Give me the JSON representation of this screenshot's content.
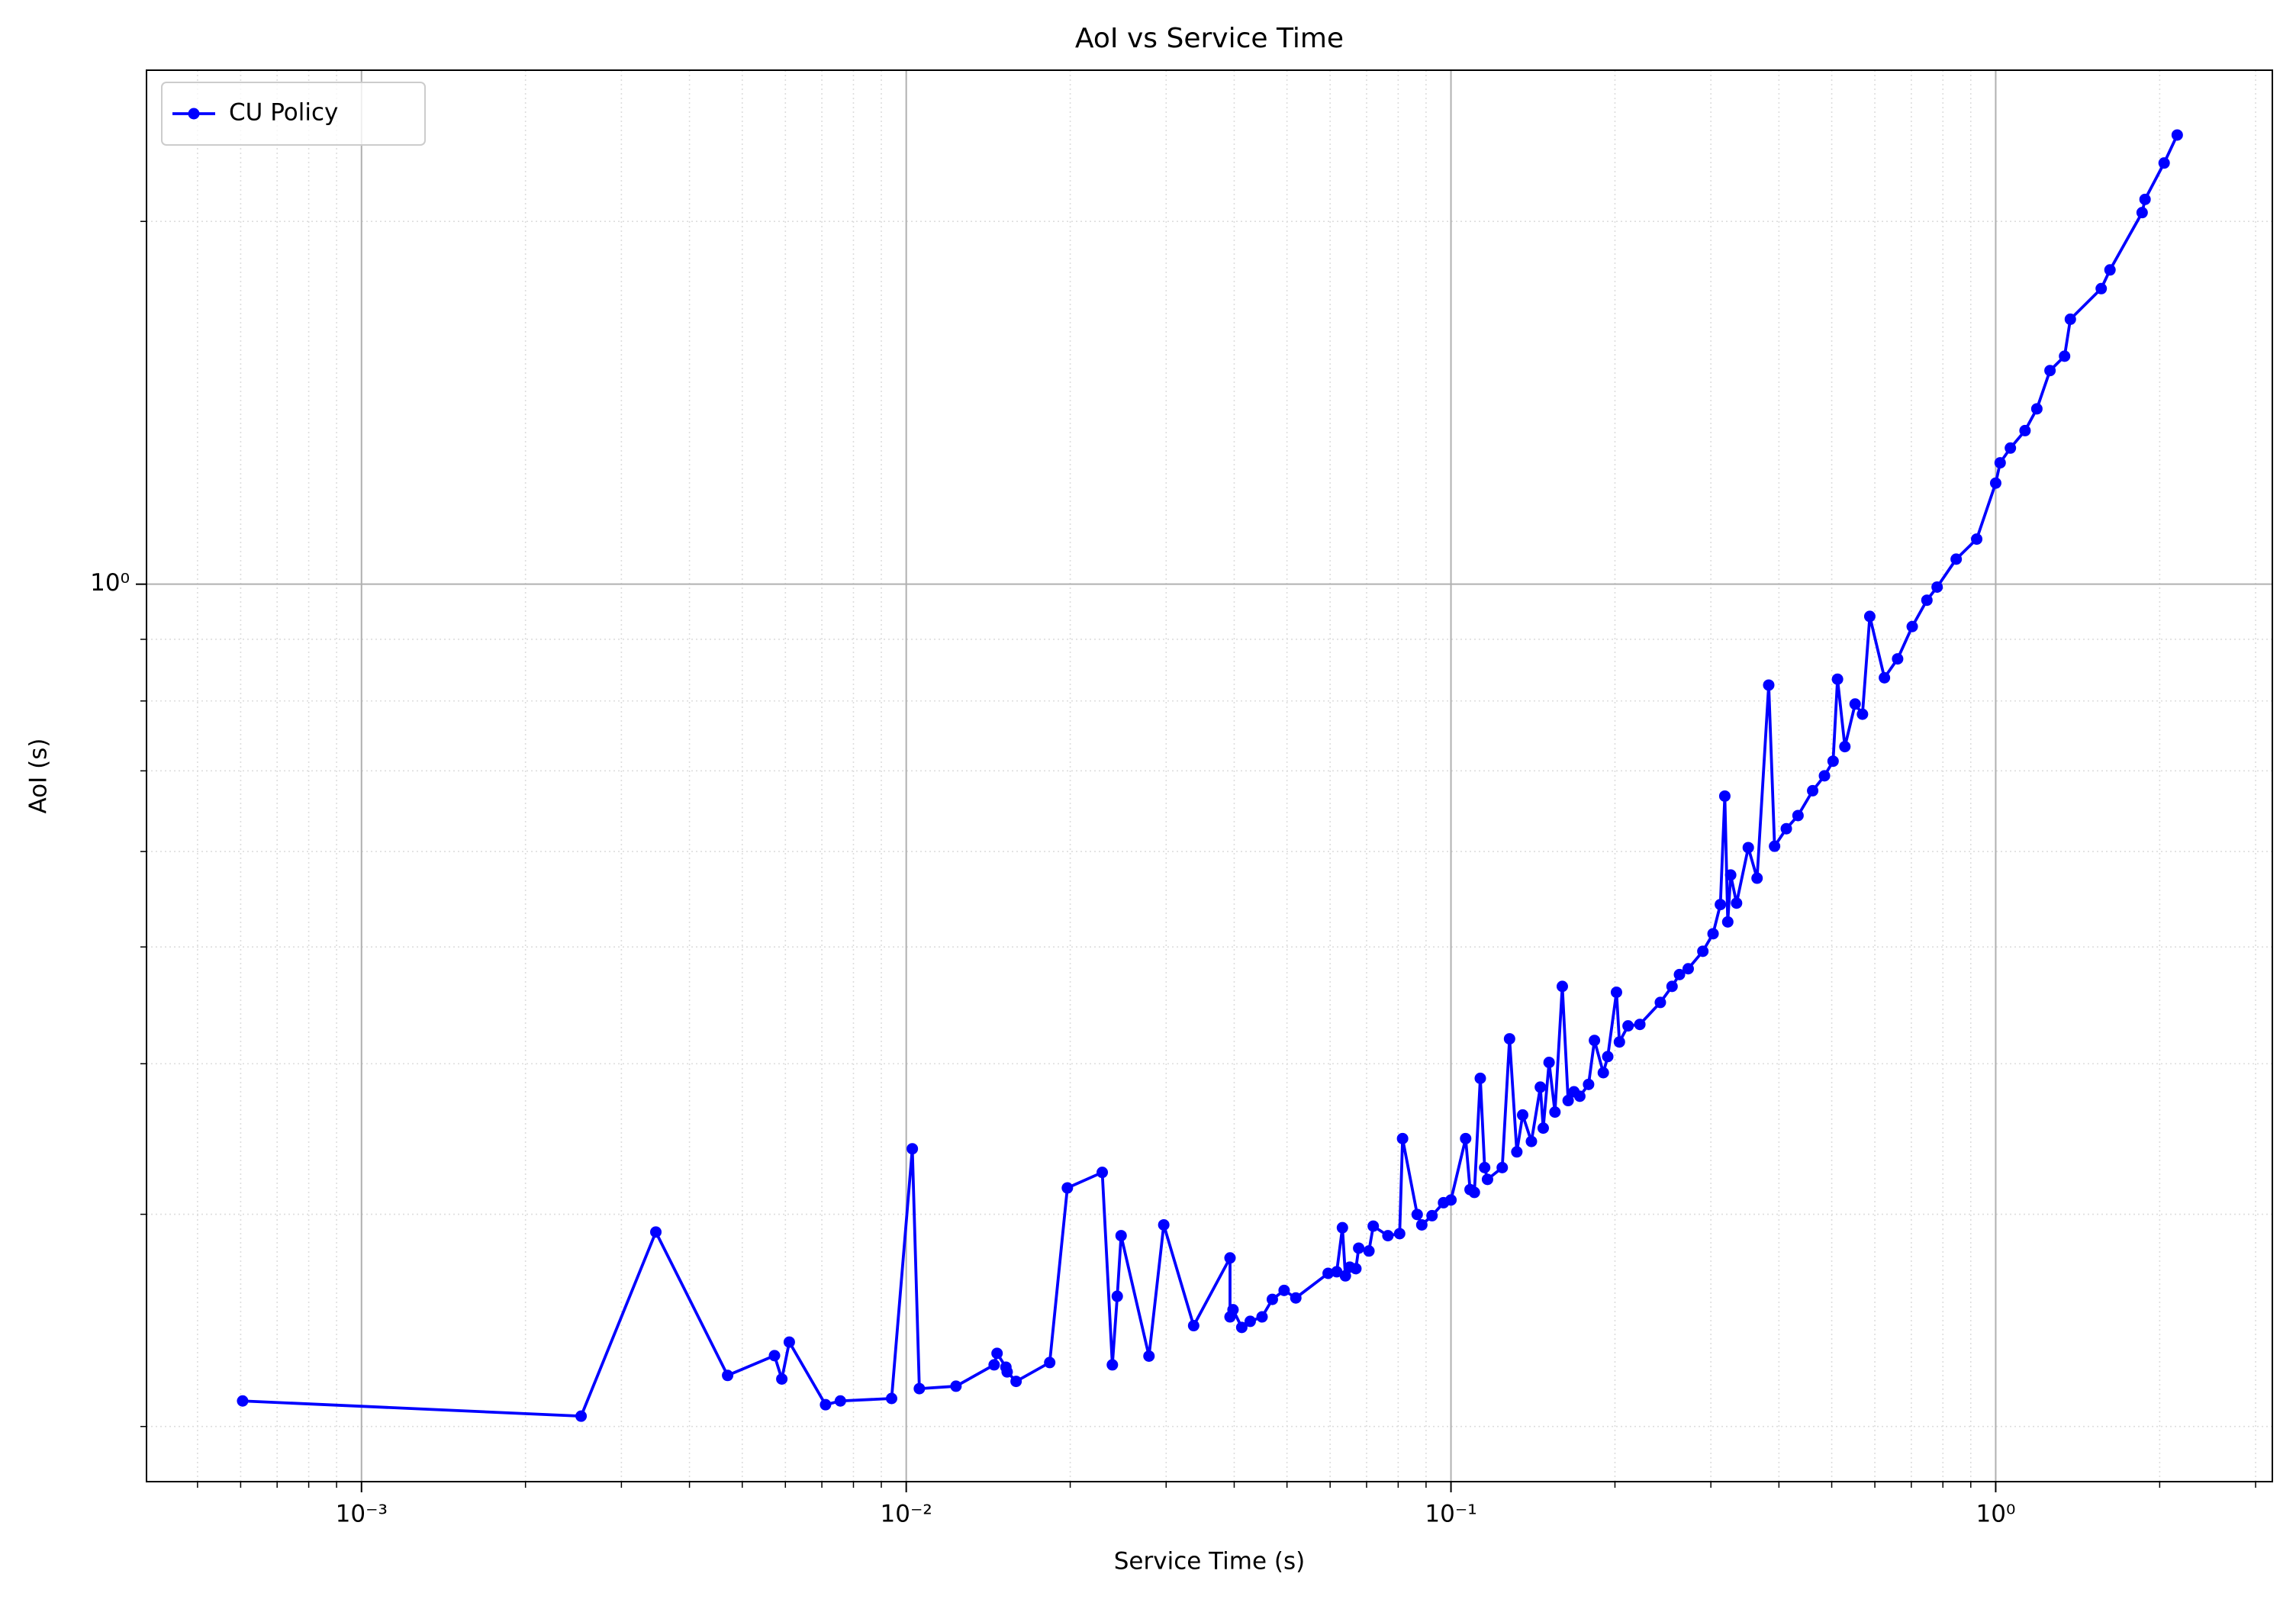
{
  "chart_data": {
    "type": "line",
    "title": "AoI vs Service Time",
    "xlabel": "Service Time (s)",
    "ylabel": "AoI (s)",
    "xscale": "log",
    "yscale": "log",
    "grid": true,
    "minor_grid": true,
    "legend": "upper left",
    "xlim": [
      0.000403,
      3.22
    ],
    "ylim": [
      0.18,
      2.67
    ],
    "xticks": [
      {
        "value": 0.001,
        "label": "10⁻³"
      },
      {
        "value": 0.01,
        "label": "10⁻²"
      },
      {
        "value": 0.1,
        "label": "10⁻¹"
      },
      {
        "value": 1,
        "label": "10⁰"
      }
    ],
    "yticks": [
      {
        "value": 1,
        "label": "10⁰"
      }
    ],
    "x": [
      0.000605,
      0.00253,
      0.00347,
      0.0047,
      0.00573,
      0.00591,
      0.0061,
      0.00711,
      0.00757,
      0.0094,
      0.01026,
      0.01057,
      0.01234,
      0.0145,
      0.01468,
      0.01524,
      0.01532,
      0.01591,
      0.01834,
      0.01976,
      0.0229,
      0.0239,
      0.0244,
      0.0248,
      0.0279,
      0.0297,
      0.0337,
      0.0393,
      0.0393,
      0.0398,
      0.0413,
      0.0428,
      0.045,
      0.047,
      0.0494,
      0.0519,
      0.0595,
      0.0617,
      0.0632,
      0.064,
      0.0652,
      0.0669,
      0.0677,
      0.0707,
      0.072,
      0.0766,
      0.0805,
      0.0815,
      0.0867,
      0.0884,
      0.0923,
      0.0969,
      0.1,
      0.1064,
      0.1084,
      0.1104,
      0.1132,
      0.1153,
      0.1167,
      0.1242,
      0.1281,
      0.1321,
      0.1354,
      0.1405,
      0.1459,
      0.1477,
      0.1514,
      0.1552,
      0.1601,
      0.1641,
      0.1682,
      0.1724,
      0.1789,
      0.1834,
      0.1904,
      0.194,
      0.2013,
      0.2038,
      0.2114,
      0.2222,
      0.2423,
      0.2546,
      0.2627,
      0.2726,
      0.29,
      0.3028,
      0.3123,
      0.3182,
      0.3222,
      0.3262,
      0.3344,
      0.3514,
      0.3647,
      0.3831,
      0.3927,
      0.4127,
      0.4336,
      0.4613,
      0.4849,
      0.5029,
      0.5124,
      0.5286,
      0.552,
      0.5694,
      0.5873,
      0.6248,
      0.6606,
      0.7027,
      0.7477,
      0.7807,
      0.8462,
      0.9228,
      1.0,
      1.019,
      1.064,
      1.132,
      1.19,
      1.258,
      1.338,
      1.371,
      1.562,
      1.621,
      1.857,
      1.88,
      2.038,
      2.154
    ],
    "series": [
      {
        "name": "CU Policy",
        "color": "#0000ff",
        "values": [
          0.21,
          0.204,
          0.29,
          0.2205,
          0.229,
          0.219,
          0.235,
          0.2085,
          0.21,
          0.211,
          0.34,
          0.215,
          0.216,
          0.225,
          0.23,
          0.224,
          0.222,
          0.218,
          0.226,
          0.3155,
          0.325,
          0.225,
          0.2565,
          0.288,
          0.2288,
          0.294,
          0.2425,
          0.276,
          0.2466,
          0.25,
          0.2417,
          0.2445,
          0.2466,
          0.255,
          0.2594,
          0.2557,
          0.268,
          0.2688,
          0.2924,
          0.2667,
          0.2712,
          0.2704,
          0.2812,
          0.2797,
          0.2933,
          0.288,
          0.2891,
          0.3467,
          0.2999,
          0.294,
          0.2992,
          0.3067,
          0.3083,
          0.3467,
          0.3145,
          0.3128,
          0.389,
          0.328,
          0.3207,
          0.328,
          0.4195,
          0.338,
          0.3627,
          0.3448,
          0.3825,
          0.3537,
          0.401,
          0.3647,
          0.4637,
          0.3728,
          0.3791,
          0.3759,
          0.3845,
          0.4182,
          0.3932,
          0.4055,
          0.4585,
          0.417,
          0.43,
          0.4312,
          0.4497,
          0.4637,
          0.4743,
          0.4796,
          0.4959,
          0.5128,
          0.5422,
          0.667,
          0.5245,
          0.5737,
          0.5437,
          0.6045,
          0.5702,
          0.8246,
          0.6061,
          0.6267,
          0.6427,
          0.6739,
          0.6934,
          0.713,
          0.834,
          0.7332,
          0.7953,
          0.78,
          0.9403,
          0.8363,
          0.867,
          0.9222,
          0.9698,
          0.9945,
          1.049,
          1.09,
          1.213,
          1.261,
          1.297,
          1.341,
          1.398,
          1.504,
          1.546,
          1.659,
          1.759,
          1.823,
          2.034,
          2.086,
          2.236,
          2.359
        ]
      }
    ]
  }
}
